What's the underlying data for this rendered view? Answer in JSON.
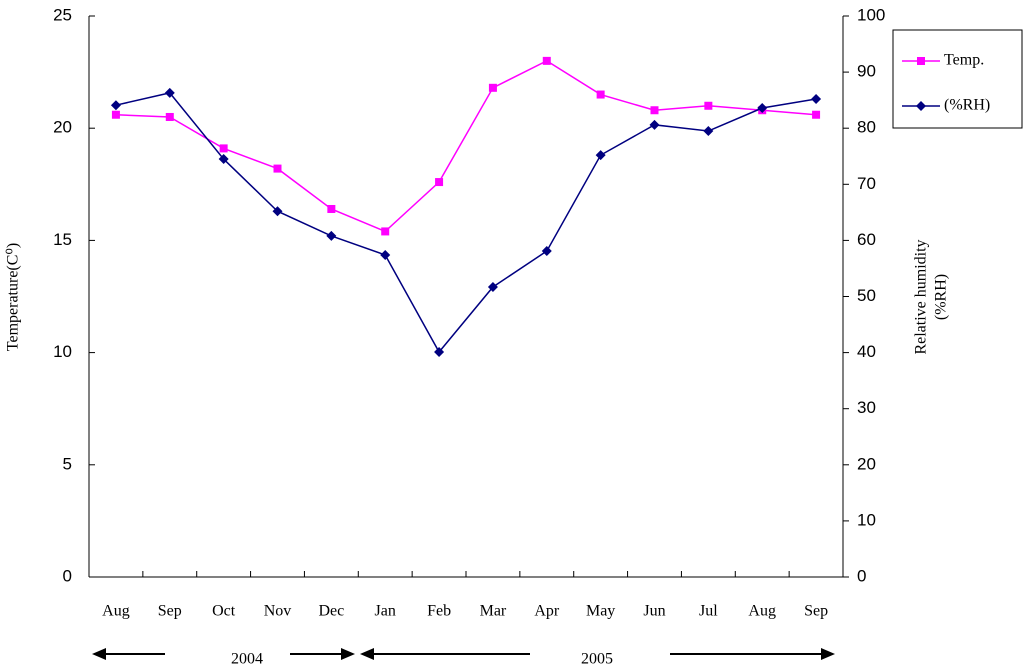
{
  "chart_data": {
    "type": "line",
    "categories": [
      "Aug",
      "Sep",
      "Oct",
      "Nov",
      "Dec",
      "Jan",
      "Feb",
      "Mar",
      "Apr",
      "May",
      "Jun",
      "Jul",
      "Aug",
      "Sep"
    ],
    "year_labels": [
      "2004",
      "2005"
    ],
    "ylabel": "Temperature(C⁰)",
    "y2label": [
      "Relative humidity",
      "(%RH)"
    ],
    "ylim": [
      0,
      25
    ],
    "yticks": [
      0,
      5,
      10,
      15,
      20,
      25
    ],
    "y2lim": [
      0,
      100
    ],
    "y2ticks": [
      0,
      10,
      20,
      30,
      40,
      50,
      60,
      70,
      80,
      90,
      100
    ],
    "series": [
      {
        "name": "Temp.",
        "color": "#ff00ff",
        "marker": "square",
        "values": [
          20.6,
          20.5,
          19.1,
          18.2,
          16.4,
          15.4,
          17.6,
          21.8,
          23.0,
          21.5,
          20.8,
          21.0,
          20.8,
          20.6
        ]
      },
      {
        "name": "(%RH)",
        "color": "#000080",
        "marker": "diamond",
        "axis": "y2",
        "values": [
          84.1,
          86.3,
          74.5,
          65.2,
          60.8,
          57.4,
          40.1,
          51.7,
          58.1,
          75.2,
          80.6,
          79.5,
          83.6,
          85.2
        ]
      }
    ]
  }
}
